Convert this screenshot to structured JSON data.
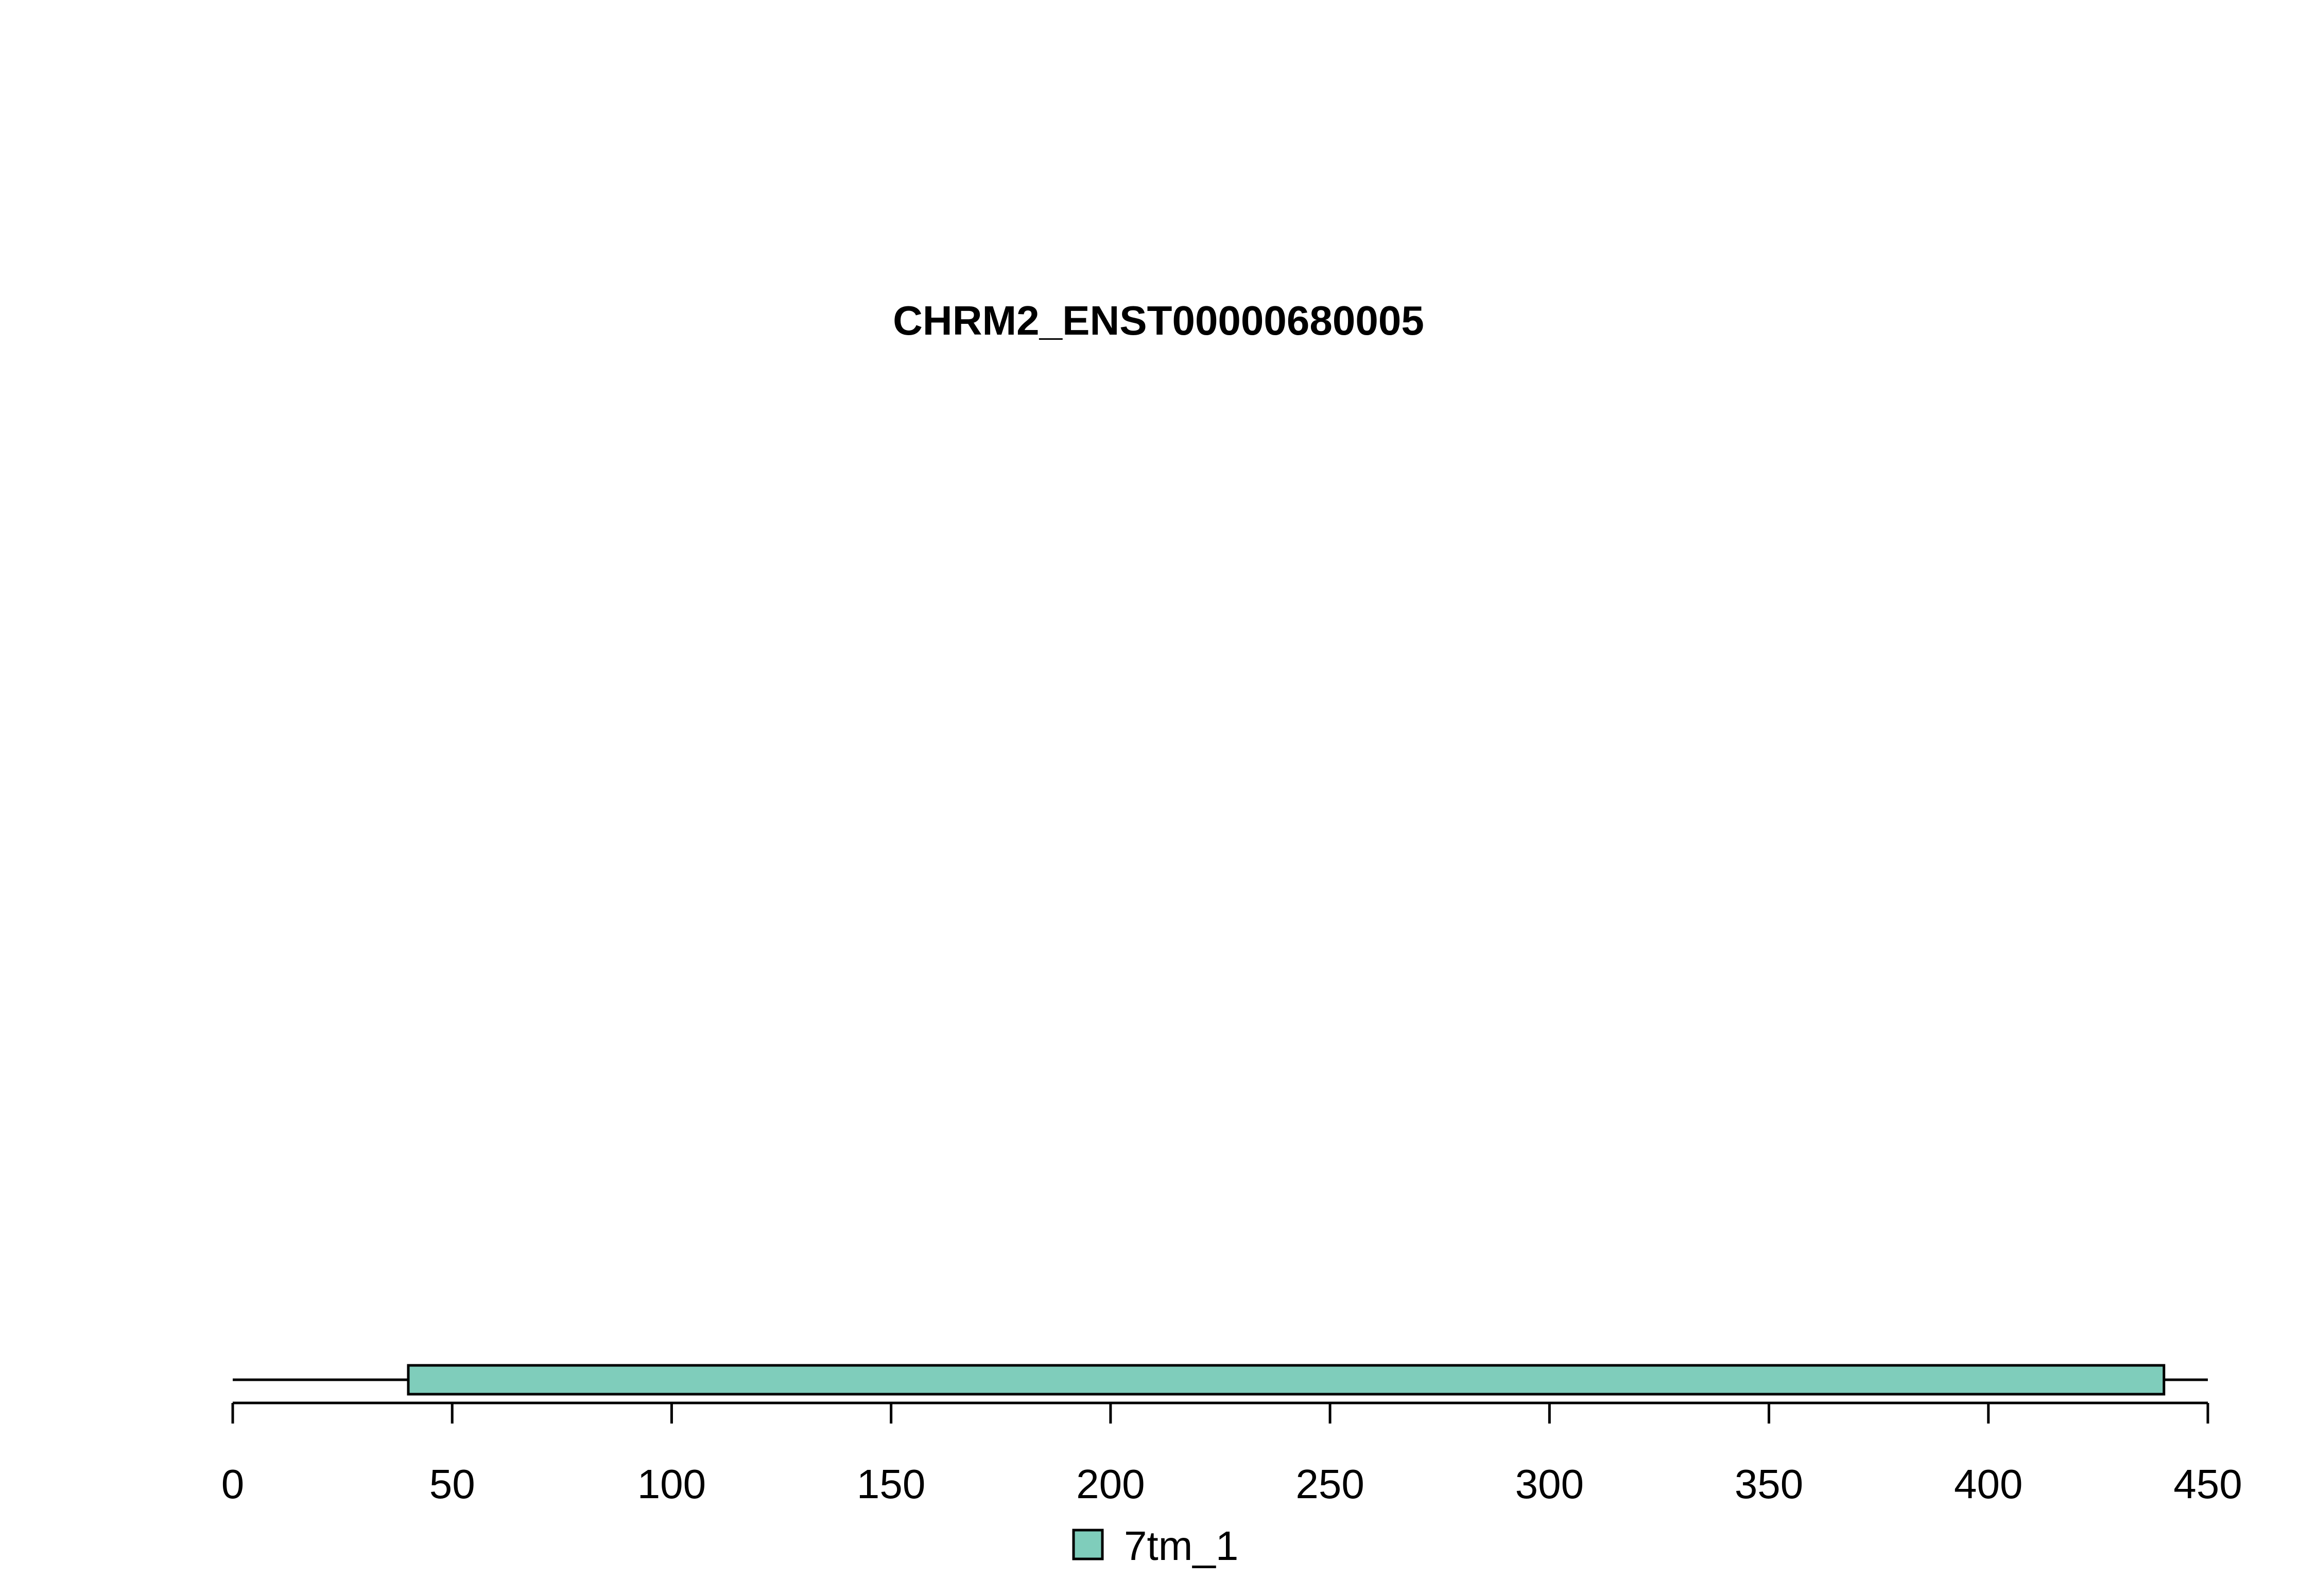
{
  "chart_data": {
    "type": "bar",
    "title": "CHRM2_ENST00000680005",
    "xlabel": "",
    "ylabel": "",
    "xlim": [
      0,
      450
    ],
    "sequence_length": 450,
    "x_ticks": [
      0,
      50,
      100,
      150,
      200,
      250,
      300,
      350,
      400,
      450
    ],
    "grid": false,
    "legend_position": "bottom-center",
    "series": [
      {
        "name": "7tm_1",
        "color": "#7FCDBB",
        "domains": [
          {
            "start": 40,
            "end": 440
          }
        ]
      }
    ]
  }
}
